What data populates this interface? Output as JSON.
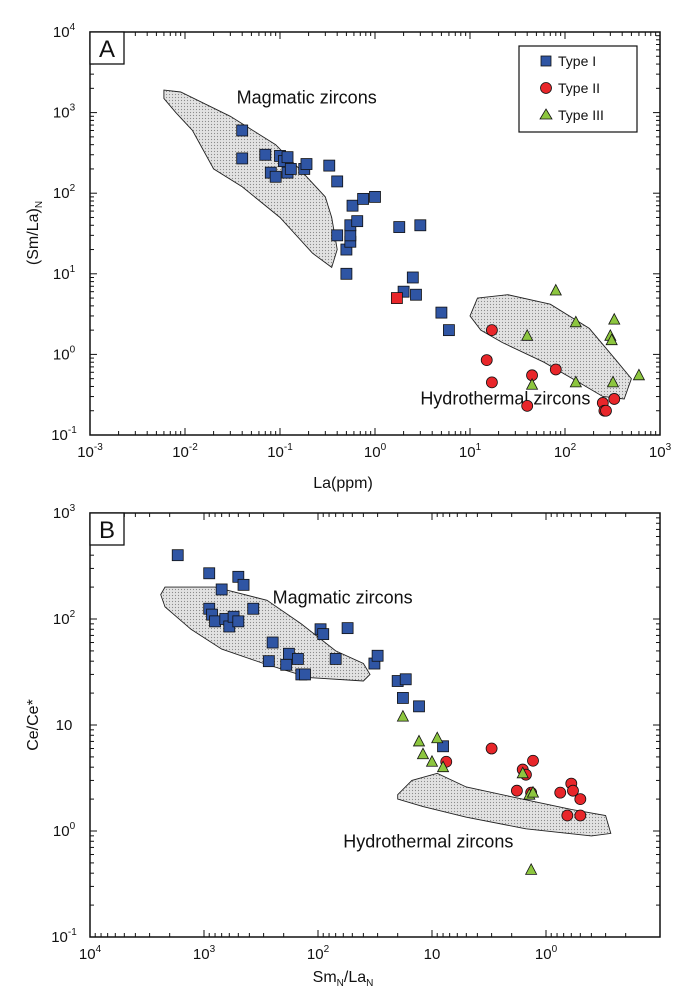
{
  "colors": {
    "type1": "#2f55a4",
    "type2": "#e8262a",
    "type3": "#8dc63f",
    "region_fill": "#e2e2e2",
    "type1_red_square": "#e8262a"
  },
  "chart_data": [
    {
      "type": "scatter",
      "panel_label": "A",
      "xlabel": "La(ppm)",
      "ylabel": "(Sm/La)N",
      "ylabel_main": "(Sm/La)",
      "ylabel_sub": "N",
      "x_scale": "log",
      "y_scale": "log",
      "xlim": [
        0.001,
        1000
      ],
      "ylim": [
        0.1,
        10000
      ],
      "x_ticks": [
        {
          "base": "10",
          "exp": "-3",
          "value": 0.001
        },
        {
          "base": "10",
          "exp": "-2",
          "value": 0.01
        },
        {
          "base": "10",
          "exp": "-1",
          "value": 0.1
        },
        {
          "base": "10",
          "exp": "0",
          "value": 1
        },
        {
          "base": "10",
          "exp": "1",
          "value": 10
        },
        {
          "base": "10",
          "exp": "2",
          "value": 100
        },
        {
          "base": "10",
          "exp": "3",
          "value": 1000
        }
      ],
      "y_ticks": [
        {
          "base": "10",
          "exp": "-1",
          "value": 0.1
        },
        {
          "base": "10",
          "exp": "0",
          "value": 1
        },
        {
          "base": "10",
          "exp": "1",
          "value": 10
        },
        {
          "base": "10",
          "exp": "2",
          "value": 100
        },
        {
          "base": "10",
          "exp": "3",
          "value": 1000
        },
        {
          "base": "10",
          "exp": "4",
          "value": 10000
        }
      ],
      "legend": {
        "placement": "top-right",
        "entries": [
          {
            "label": "Type I",
            "marker": "square",
            "color": "#2f55a4"
          },
          {
            "label": "Type II",
            "marker": "circle",
            "color": "#e8262a"
          },
          {
            "label": "Type III",
            "marker": "triangle",
            "color": "#8dc63f"
          }
        ]
      },
      "regions": [
        {
          "label": "Magmatic zircons",
          "label_at": [
            0.035,
            1300
          ],
          "polygon": [
            [
              0.006,
              1900
            ],
            [
              0.009,
              1800
            ],
            [
              0.03,
              900
            ],
            [
              0.09,
              400
            ],
            [
              0.16,
              200
            ],
            [
              0.3,
              90
            ],
            [
              0.35,
              50
            ],
            [
              0.4,
              20
            ],
            [
              0.35,
              12
            ],
            [
              0.22,
              18
            ],
            [
              0.1,
              50
            ],
            [
              0.04,
              120
            ],
            [
              0.02,
              200
            ],
            [
              0.012,
              600
            ],
            [
              0.008,
              1000
            ],
            [
              0.006,
              1500
            ]
          ]
        },
        {
          "label": "Hydrothermal zircons",
          "label_at": [
            3,
            0.24
          ],
          "polygon": [
            [
              12,
              5
            ],
            [
              25,
              5.5
            ],
            [
              70,
              4.2
            ],
            [
              180,
              2.1
            ],
            [
              330,
              0.9
            ],
            [
              500,
              0.5
            ],
            [
              420,
              0.28
            ],
            [
              250,
              0.3
            ],
            [
              140,
              0.45
            ],
            [
              60,
              0.8
            ],
            [
              22,
              1.4
            ],
            [
              13,
              2
            ],
            [
              10,
              3
            ]
          ]
        }
      ],
      "series": [
        {
          "name": "Type I",
          "marker": "square",
          "color": "#2f55a4",
          "points": [
            [
              0.04,
              600
            ],
            [
              0.04,
              270
            ],
            [
              0.07,
              300
            ],
            [
              0.08,
              180
            ],
            [
              0.09,
              160
            ],
            [
              0.1,
              290
            ],
            [
              0.11,
              250
            ],
            [
              0.12,
              280
            ],
            [
              0.12,
              180
            ],
            [
              0.13,
              200
            ],
            [
              0.18,
              200
            ],
            [
              0.19,
              230
            ],
            [
              0.33,
              220
            ],
            [
              0.4,
              140
            ],
            [
              0.4,
              30
            ],
            [
              0.5,
              20
            ],
            [
              0.5,
              10
            ],
            [
              0.55,
              25
            ],
            [
              0.55,
              30
            ],
            [
              0.55,
              40
            ],
            [
              0.58,
              70
            ],
            [
              0.65,
              45
            ],
            [
              0.75,
              85
            ],
            [
              1.0,
              90
            ],
            [
              1.8,
              38
            ],
            [
              3.0,
              40
            ],
            [
              2.0,
              6
            ],
            [
              2.5,
              9
            ],
            [
              2.7,
              5.5
            ],
            [
              5.0,
              3.3
            ],
            [
              6.0,
              2
            ]
          ]
        },
        {
          "name": "Type I (red)",
          "marker": "square",
          "color": "#e8262a",
          "points": [
            [
              1.7,
              5
            ]
          ]
        },
        {
          "name": "Type II",
          "marker": "circle",
          "color": "#e8262a",
          "points": [
            [
              15,
              0.85
            ],
            [
              17,
              2
            ],
            [
              17,
              0.45
            ],
            [
              40,
              0.23
            ],
            [
              45,
              0.55
            ],
            [
              80,
              0.65
            ],
            [
              250,
              0.25
            ],
            [
              260,
              0.2
            ],
            [
              270,
              0.2
            ],
            [
              330,
              0.28
            ]
          ]
        },
        {
          "name": "Type III",
          "marker": "triangle",
          "color": "#8dc63f",
          "points": [
            [
              40,
              1.7
            ],
            [
              45,
              0.42
            ],
            [
              80,
              6.2
            ],
            [
              130,
              2.5
            ],
            [
              130,
              0.45
            ],
            [
              300,
              1.7
            ],
            [
              310,
              1.5
            ],
            [
              330,
              2.7
            ],
            [
              320,
              0.45
            ],
            [
              600,
              0.55
            ]
          ]
        }
      ]
    },
    {
      "type": "scatter",
      "panel_label": "B",
      "xlabel": "SmN/LaN",
      "xlabel_parts": [
        "Sm",
        "N",
        "/La",
        "N"
      ],
      "ylabel": "Ce/Ce*",
      "x_scale": "log",
      "x_reversed": true,
      "y_scale": "log",
      "xlim": [
        10000,
        0.1
      ],
      "ylim": [
        0.1,
        1000
      ],
      "x_ticks": [
        {
          "base": "10",
          "exp": "4",
          "value": 10000
        },
        {
          "base": "10",
          "exp": "3",
          "value": 1000
        },
        {
          "base": "10",
          "exp": "2",
          "value": 100
        },
        {
          "base": "10",
          "exp": "",
          "value": 10
        },
        {
          "base": "10",
          "exp": "0",
          "value": 1
        }
      ],
      "y_ticks": [
        {
          "base": "10",
          "exp": "-1",
          "value": 0.1
        },
        {
          "base": "10",
          "exp": "0",
          "value": 1
        },
        {
          "base": "10",
          "exp": "",
          "value": 10
        },
        {
          "base": "10",
          "exp": "2",
          "value": 100
        },
        {
          "base": "10",
          "exp": "3",
          "value": 1000
        }
      ],
      "regions": [
        {
          "label": "Magmatic zircons",
          "label_at": [
            250,
            140
          ],
          "polygon": [
            [
              2200,
              200
            ],
            [
              800,
              200
            ],
            [
              280,
              150
            ],
            [
              140,
              90
            ],
            [
              70,
              50
            ],
            [
              40,
              38
            ],
            [
              35,
              30
            ],
            [
              40,
              26
            ],
            [
              120,
              28
            ],
            [
              300,
              38
            ],
            [
              700,
              52
            ],
            [
              1300,
              80
            ],
            [
              2200,
              130
            ],
            [
              2400,
              170
            ]
          ]
        },
        {
          "label": "Hydrothermal zircons",
          "label_at": [
            60,
            0.7
          ],
          "polygon": [
            [
              20,
              2.2
            ],
            [
              15,
              3.0
            ],
            [
              9,
              3.5
            ],
            [
              5,
              2.6
            ],
            [
              2,
              2.1
            ],
            [
              0.6,
              1.6
            ],
            [
              0.3,
              1.4
            ],
            [
              0.27,
              0.95
            ],
            [
              0.4,
              0.9
            ],
            [
              1.5,
              1.05
            ],
            [
              5,
              1.35
            ],
            [
              12,
              1.7
            ],
            [
              20,
              2.0
            ]
          ]
        }
      ],
      "series": [
        {
          "name": "Type I",
          "marker": "square",
          "color": "#2f55a4",
          "points": [
            [
              1700,
              400
            ],
            [
              900,
              270
            ],
            [
              700,
              190
            ],
            [
              500,
              250
            ],
            [
              450,
              210
            ],
            [
              900,
              125
            ],
            [
              850,
              110
            ],
            [
              800,
              95
            ],
            [
              650,
              100
            ],
            [
              600,
              85
            ],
            [
              550,
              105
            ],
            [
              500,
              95
            ],
            [
              370,
              125
            ],
            [
              250,
              60
            ],
            [
              270,
              40
            ],
            [
              190,
              37
            ],
            [
              180,
              47
            ],
            [
              150,
              42
            ],
            [
              140,
              30
            ],
            [
              130,
              30
            ],
            [
              95,
              80
            ],
            [
              90,
              72
            ],
            [
              70,
              42
            ],
            [
              55,
              82
            ],
            [
              32,
              38
            ],
            [
              30,
              45
            ],
            [
              20,
              26
            ],
            [
              18,
              18
            ],
            [
              17,
              27
            ],
            [
              13,
              15
            ],
            [
              8,
              6.3
            ]
          ]
        },
        {
          "name": "Type II",
          "marker": "circle",
          "color": "#e8262a",
          "points": [
            [
              7.5,
              4.5
            ],
            [
              3,
              6
            ],
            [
              1.8,
              2.4
            ],
            [
              1.6,
              3.8
            ],
            [
              1.5,
              3.4
            ],
            [
              1.3,
              4.6
            ],
            [
              1.35,
              2.3
            ],
            [
              0.75,
              2.3
            ],
            [
              0.6,
              2.8
            ],
            [
              0.58,
              2.4
            ],
            [
              0.5,
              2
            ],
            [
              0.65,
              1.4
            ],
            [
              0.5,
              1.4
            ]
          ]
        },
        {
          "name": "Type III",
          "marker": "triangle",
          "color": "#8dc63f",
          "points": [
            [
              18,
              12
            ],
            [
              13,
              7
            ],
            [
              12,
              5.3
            ],
            [
              10,
              4.5
            ],
            [
              9,
              7.5
            ],
            [
              8,
              4
            ],
            [
              1.6,
              3.5
            ],
            [
              1.4,
              2.2
            ],
            [
              1.3,
              2.3
            ],
            [
              1.35,
              0.43
            ]
          ]
        }
      ]
    }
  ]
}
